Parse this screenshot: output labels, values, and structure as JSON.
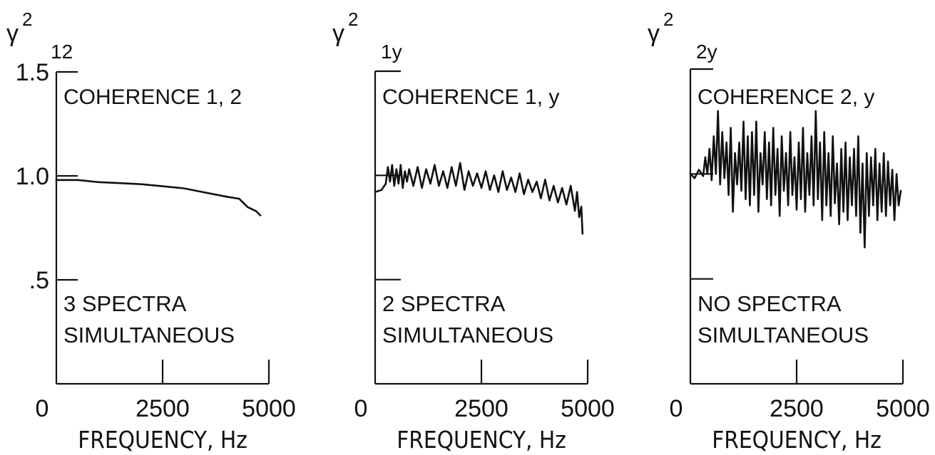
{
  "chart_data": [
    {
      "type": "line",
      "title": "COHERENCE 1, 2",
      "annotation": [
        "3 SPECTRA",
        "SIMULTANEOUS"
      ],
      "ylabel_symbol": "γ",
      "ylabel_superscript": "2",
      "ylabel_subscript": "12",
      "xlabel": "FREQUENCY,  Hz",
      "xlim": [
        0,
        5000
      ],
      "ylim": [
        0,
        1.5
      ],
      "xticks": [
        0,
        2500,
        5000
      ],
      "xtick_labels": [
        "0",
        "2500",
        "5000"
      ],
      "yticks": [
        0.5,
        1.0,
        1.5
      ],
      "ytick_labels": [
        ".5",
        "1.0",
        "1.5"
      ],
      "series": [
        {
          "x": [
            0,
            500,
            1000,
            1500,
            2000,
            2500,
            3000,
            3500,
            4000,
            4300,
            4500,
            4700,
            4800
          ],
          "y": [
            0.98,
            0.98,
            0.97,
            0.965,
            0.96,
            0.95,
            0.94,
            0.92,
            0.9,
            0.89,
            0.85,
            0.83,
            0.81
          ]
        }
      ]
    },
    {
      "type": "line",
      "title": "COHERENCE 1, y",
      "annotation": [
        "2 SPECTRA",
        "SIMULTANEOUS"
      ],
      "ylabel_symbol": "γ",
      "ylabel_superscript": "2",
      "ylabel_subscript": "1y",
      "xlabel": "FREQUENCY,  Hz",
      "xlim": [
        0,
        5000
      ],
      "ylim": [
        0,
        1.5
      ],
      "xticks": [
        0,
        2500,
        5000
      ],
      "xtick_labels": [
        "0",
        "2500",
        "5000"
      ],
      "yticks": [
        0.5,
        1.0,
        1.5
      ],
      "ytick_labels": [
        ".5",
        "1.0",
        "1.5"
      ],
      "series": [
        {
          "x": [
            0,
            150,
            250,
            300,
            350,
            400,
            450,
            500,
            550,
            600,
            650,
            700,
            750,
            800,
            900,
            1000,
            1100,
            1200,
            1300,
            1400,
            1500,
            1600,
            1700,
            1800,
            1900,
            2000,
            2100,
            2200,
            2300,
            2400,
            2500,
            2600,
            2700,
            2800,
            2900,
            3000,
            3100,
            3200,
            3300,
            3400,
            3500,
            3600,
            3700,
            3800,
            3900,
            4000,
            4100,
            4200,
            4300,
            4400,
            4500,
            4600,
            4700,
            4750,
            4800,
            4850,
            4880
          ],
          "y": [
            0.92,
            0.93,
            0.96,
            1.04,
            0.97,
            1.05,
            0.95,
            1.03,
            0.96,
            1.05,
            0.94,
            1.02,
            0.97,
            1.03,
            0.95,
            1.04,
            0.94,
            1.03,
            0.96,
            1.05,
            0.95,
            1.02,
            0.94,
            1.04,
            0.95,
            1.06,
            0.93,
            1.02,
            0.95,
            1.01,
            0.94,
            1.02,
            0.93,
            1.0,
            0.92,
            1.02,
            0.93,
            0.99,
            0.92,
            1.01,
            0.91,
            0.98,
            0.92,
            0.97,
            0.89,
            0.98,
            0.88,
            0.95,
            0.87,
            0.94,
            0.86,
            0.95,
            0.83,
            0.92,
            0.8,
            0.85,
            0.72
          ]
        }
      ]
    },
    {
      "type": "line",
      "title": "COHERENCE 2, y",
      "annotation": [
        "NO SPECTRA",
        "SIMULTANEOUS"
      ],
      "ylabel_symbol": "γ",
      "ylabel_superscript": "2",
      "ylabel_subscript": "2y",
      "xlabel": "FREQUENCY,  Hz",
      "xlim": [
        0,
        5000
      ],
      "ylim": [
        0,
        1.5
      ],
      "xticks": [
        0,
        2500,
        5000
      ],
      "xtick_labels": [
        "0",
        "2500",
        "5000"
      ],
      "yticks": [
        0.5,
        1.0,
        1.5
      ],
      "ytick_labels": [
        ".5",
        "1.0",
        "1.5"
      ],
      "series": [
        {
          "x": [
            0,
            100,
            200,
            300,
            350,
            400,
            450,
            500,
            550,
            600,
            650,
            700,
            750,
            800,
            850,
            900,
            950,
            1000,
            1050,
            1100,
            1150,
            1200,
            1250,
            1300,
            1350,
            1400,
            1450,
            1500,
            1550,
            1600,
            1650,
            1700,
            1750,
            1800,
            1850,
            1900,
            1950,
            2000,
            2050,
            2100,
            2150,
            2200,
            2250,
            2300,
            2350,
            2400,
            2450,
            2500,
            2550,
            2600,
            2650,
            2700,
            2750,
            2800,
            2850,
            2900,
            2950,
            3000,
            3050,
            3100,
            3150,
            3200,
            3250,
            3300,
            3350,
            3400,
            3450,
            3500,
            3550,
            3600,
            3650,
            3700,
            3750,
            3800,
            3850,
            3900,
            3950,
            4000,
            4050,
            4100,
            4150,
            4200,
            4250,
            4300,
            4350,
            4400,
            4450,
            4500,
            4550,
            4600,
            4650,
            4700,
            4750,
            4800,
            4850,
            4900,
            4950
          ],
          "y": [
            1.0,
            0.98,
            1.02,
            0.99,
            1.08,
            1.0,
            1.12,
            0.97,
            1.18,
            1.0,
            1.3,
            0.95,
            1.2,
            0.98,
            1.15,
            0.9,
            1.22,
            0.82,
            1.1,
            0.95,
            1.15,
            0.92,
            1.25,
            0.88,
            1.18,
            0.85,
            1.2,
            0.9,
            1.25,
            0.82,
            1.1,
            0.95,
            1.2,
            0.88,
            1.15,
            0.85,
            1.22,
            0.9,
            1.12,
            0.8,
            1.18,
            0.92,
            1.1,
            0.85,
            1.2,
            0.9,
            1.08,
            0.83,
            1.15,
            0.88,
            1.22,
            0.82,
            1.1,
            0.9,
            1.18,
            0.85,
            1.3,
            0.88,
            1.15,
            0.78,
            1.2,
            0.85,
            1.1,
            0.8,
            1.18,
            0.86,
            1.05,
            0.76,
            1.12,
            0.82,
            1.15,
            0.78,
            1.08,
            0.85,
            1.12,
            0.8,
            1.18,
            0.72,
            1.05,
            0.65,
            1.1,
            0.8,
            1.08,
            0.85,
            1.12,
            0.78,
            1.05,
            0.82,
            1.1,
            0.8,
            1.06,
            0.85,
            1.02,
            0.78,
            1.0,
            0.85,
            0.92
          ]
        }
      ]
    }
  ]
}
